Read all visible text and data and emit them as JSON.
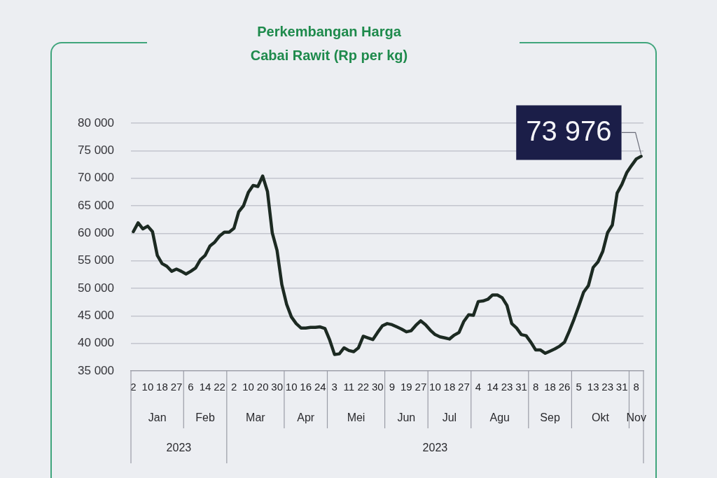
{
  "chart_data": {
    "type": "line",
    "title": "Perkembangan Harga Cabai Rawit (Rp per kg)",
    "categories": [
      "2",
      null,
      null,
      "10",
      null,
      null,
      "18",
      null,
      null,
      "27",
      null,
      null,
      "6",
      null,
      null,
      "14",
      null,
      null,
      "22",
      null,
      null,
      "2",
      null,
      null,
      "10",
      null,
      null,
      "20",
      null,
      null,
      "30",
      null,
      null,
      "10",
      null,
      null,
      "16",
      null,
      null,
      "24",
      null,
      null,
      "3",
      null,
      null,
      "11",
      null,
      null,
      "22",
      null,
      null,
      "30",
      null,
      null,
      "9",
      null,
      null,
      "19",
      null,
      null,
      "27",
      null,
      null,
      "10",
      null,
      null,
      "18",
      null,
      null,
      "27",
      null,
      null,
      "4",
      null,
      null,
      "14",
      null,
      null,
      "23",
      null,
      null,
      "31",
      null,
      null,
      "8",
      null,
      null,
      "18",
      null,
      null,
      "26",
      null,
      null,
      "5",
      null,
      null,
      "13",
      null,
      null,
      "23",
      null,
      null,
      "31",
      null,
      null,
      "8",
      null
    ],
    "values": [
      60300,
      61900,
      60800,
      61300,
      60300,
      56000,
      54500,
      54000,
      53100,
      53500,
      53100,
      52600,
      53100,
      53700,
      55200,
      56000,
      57700,
      58400,
      59500,
      60200,
      60200,
      60900,
      63900,
      65000,
      67400,
      68700,
      68500,
      70400,
      67600,
      60100,
      56900,
      50700,
      47100,
      44800,
      43600,
      42800,
      42800,
      42900,
      42900,
      43000,
      42700,
      40600,
      38000,
      38100,
      39200,
      38700,
      38500,
      39200,
      41300,
      41000,
      40700,
      42000,
      43200,
      43600,
      43400,
      43000,
      42600,
      42100,
      42300,
      43300,
      44100,
      43400,
      42400,
      41600,
      41200,
      41000,
      40800,
      41500,
      42000,
      44000,
      45200,
      45100,
      47600,
      47700,
      48000,
      48800,
      48800,
      48300,
      46900,
      43600,
      42800,
      41600,
      41400,
      40200,
      38800,
      38800,
      38200,
      38600,
      39000,
      39500,
      40200,
      42200,
      44400,
      46800,
      49300,
      50500,
      53800,
      54800,
      56700,
      60100,
      61500,
      67300,
      68900,
      71000,
      72300,
      73500,
      73976
    ],
    "value_labels": [
      null,
      null,
      null,
      null,
      null,
      null,
      null,
      null,
      null,
      null,
      null,
      null,
      null,
      null,
      null,
      null,
      null,
      null,
      null,
      null,
      null,
      null,
      null,
      null,
      null,
      null,
      null,
      null,
      null,
      null,
      null,
      null,
      null,
      null,
      null,
      null,
      null,
      null,
      null,
      null,
      null,
      null,
      null,
      null,
      null,
      null,
      null,
      null,
      null,
      null,
      null,
      null,
      null,
      null,
      null,
      null,
      null,
      null,
      null,
      null,
      null,
      null,
      null,
      null,
      null,
      null,
      null,
      null,
      null,
      null,
      null,
      null,
      null,
      null,
      null,
      null,
      null,
      null,
      null,
      null,
      null,
      null,
      null,
      null,
      null,
      null,
      null,
      null,
      null,
      null,
      null,
      null,
      null,
      null,
      null,
      null,
      null,
      null,
      null,
      null,
      null,
      null,
      null,
      null,
      null,
      null,
      "73 976"
    ],
    "color": "#1c2a22",
    "ylim": [
      35000,
      80000
    ],
    "yticks": [
      {
        "value": 35000,
        "label": "35 000"
      },
      {
        "value": 40000,
        "label": "40 000"
      },
      {
        "value": 45000,
        "label": "45 000"
      },
      {
        "value": 50000,
        "label": "50 000"
      },
      {
        "value": 55000,
        "label": "55 000"
      },
      {
        "value": 60000,
        "label": "60 000"
      },
      {
        "value": 65000,
        "label": "65 000"
      },
      {
        "value": 70000,
        "label": "70 000"
      },
      {
        "value": 75000,
        "label": "75 000"
      },
      {
        "value": 80000,
        "label": "80 000"
      }
    ],
    "grid": "y",
    "annotations": [
      "Jan",
      "Feb",
      "Mar",
      "Apr",
      "Mei",
      "Jun",
      "Jul",
      "Agu",
      "Sep",
      "Okt",
      "Nov",
      "2023",
      "2023"
    ]
  }
}
